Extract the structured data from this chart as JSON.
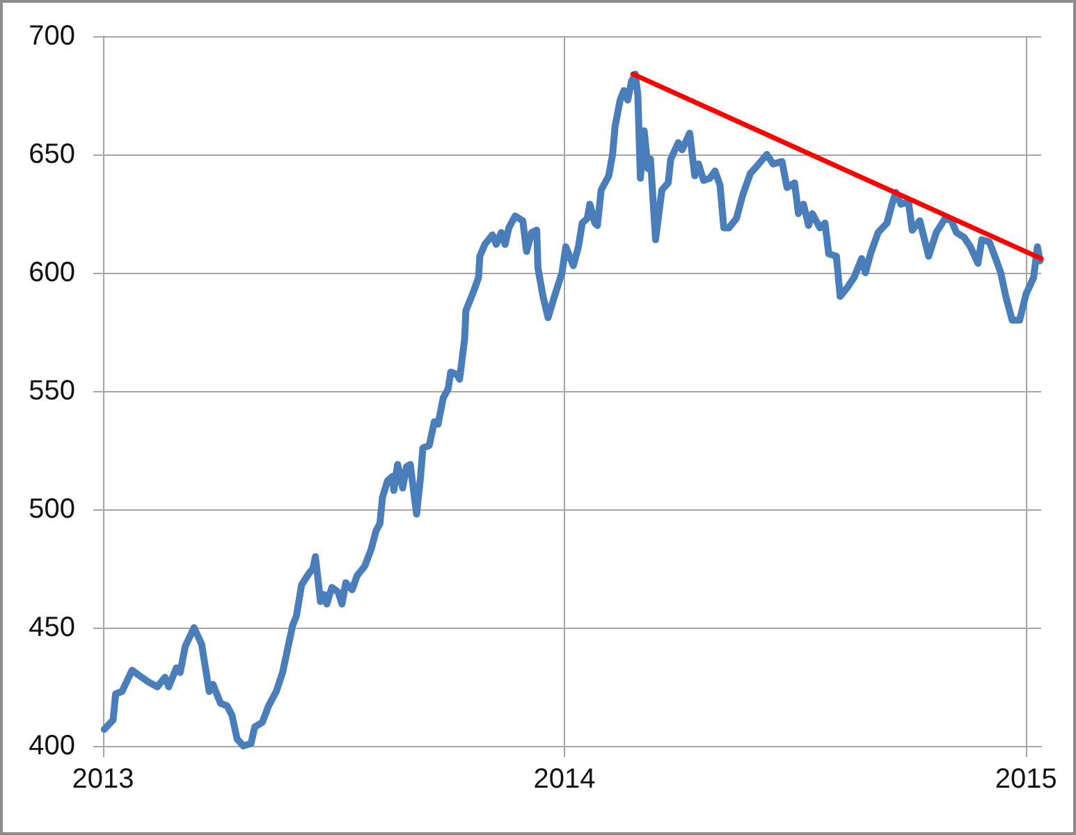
{
  "chart_data": {
    "type": "line",
    "xlim": [
      "2013-01-01",
      "2015-01-13"
    ],
    "xticks": [
      "2013",
      "2014",
      "2015"
    ],
    "ylim": [
      400,
      700
    ],
    "yticks": [
      400,
      450,
      500,
      550,
      600,
      650,
      700
    ],
    "grid": true,
    "marker": "none",
    "series": [
      {
        "color": "#4a7ebb",
        "x": [
          "2013-01-02",
          "2013-01-09",
          "2013-01-11",
          "2013-01-16",
          "2013-01-24",
          "2013-01-29",
          "2013-02-06",
          "2013-02-13",
          "2013-02-19",
          "2013-02-22",
          "2013-02-28",
          "2013-03-03",
          "2013-03-07",
          "2013-03-14",
          "2013-03-20",
          "2013-03-26",
          "2013-03-29",
          "2013-04-04",
          "2013-04-09",
          "2013-04-13",
          "2013-04-17",
          "2013-04-22",
          "2013-04-28",
          "2013-05-01",
          "2013-05-07",
          "2013-05-12",
          "2013-05-18",
          "2013-05-23",
          "2013-05-27",
          "2013-05-31",
          "2013-06-03",
          "2013-06-07",
          "2013-06-13",
          "2013-06-16",
          "2013-06-18",
          "2013-06-22",
          "2013-06-25",
          "2013-06-27",
          "2013-07-01",
          "2013-07-06",
          "2013-07-09",
          "2013-07-12",
          "2013-07-17",
          "2013-07-21",
          "2013-07-27",
          "2013-08-01",
          "2013-08-05",
          "2013-08-08",
          "2013-08-10",
          "2013-08-14",
          "2013-08-18",
          "2013-08-19",
          "2013-08-22",
          "2013-08-26",
          "2013-08-29",
          "2013-09-01",
          "2013-09-06",
          "2013-09-09",
          "2013-09-11",
          "2013-09-16",
          "2013-09-20",
          "2013-09-23",
          "2013-09-27",
          "2013-10-01",
          "2013-10-03",
          "2013-10-08",
          "2013-10-10",
          "2013-10-14",
          "2013-10-15",
          "2013-10-21",
          "2013-10-25",
          "2013-10-26",
          "2013-10-30",
          "2013-11-05",
          "2013-11-08",
          "2013-11-12",
          "2013-11-15",
          "2013-11-18",
          "2013-11-23",
          "2013-11-29",
          "2013-12-02",
          "2013-12-06",
          "2013-12-10",
          "2013-12-11",
          "2013-12-15",
          "2013-12-19",
          "2013-12-24",
          "2013-12-30",
          "2014-01-02",
          "2014-01-08",
          "2014-01-12",
          "2014-01-15",
          "2014-01-19",
          "2014-01-21",
          "2014-01-25",
          "2014-01-27",
          "2014-01-30",
          "2014-02-05",
          "2014-02-08",
          "2014-02-10",
          "2014-02-14",
          "2014-02-17",
          "2014-02-20",
          "2014-02-23",
          "2014-02-26",
          "2014-02-28",
          "2014-03-02",
          "2014-03-05",
          "2014-03-08",
          "2014-03-10",
          "2014-03-14",
          "2014-03-19",
          "2014-03-24",
          "2014-03-26",
          "2014-04-01",
          "2014-04-04",
          "2014-04-10",
          "2014-04-14",
          "2014-04-17",
          "2014-04-21",
          "2014-04-26",
          "2014-04-30",
          "2014-05-04",
          "2014-05-07",
          "2014-05-11",
          "2014-05-17",
          "2014-05-22",
          "2014-05-28",
          "2014-06-02",
          "2014-06-10",
          "2014-06-15",
          "2014-06-22",
          "2014-06-26",
          "2014-07-02",
          "2014-07-05",
          "2014-07-09",
          "2014-07-13",
          "2014-07-16",
          "2014-07-22",
          "2014-07-26",
          "2014-07-29",
          "2014-08-04",
          "2014-08-07",
          "2014-08-13",
          "2014-08-18",
          "2014-08-24",
          "2014-08-27",
          "2014-08-31",
          "2014-09-06",
          "2014-09-13",
          "2014-09-17",
          "2014-09-20",
          "2014-09-24",
          "2014-09-30",
          "2014-10-03",
          "2014-10-09",
          "2014-10-16",
          "2014-10-22",
          "2014-10-29",
          "2014-11-03",
          "2014-11-07",
          "2014-11-13",
          "2014-11-18",
          "2014-11-24",
          "2014-11-27",
          "2014-12-03",
          "2014-12-08",
          "2014-12-12",
          "2014-12-16",
          "2014-12-21",
          "2014-12-27",
          "2015-01-01",
          "2015-01-07",
          "2015-01-10",
          "2015-01-12"
        ],
        "values": [
          407,
          411,
          422,
          423,
          432,
          430,
          427,
          425,
          429,
          425,
          433,
          431,
          442,
          450,
          443,
          423,
          426,
          418,
          417,
          413,
          403,
          400,
          401,
          408,
          410,
          417,
          423,
          431,
          441,
          451,
          455,
          468,
          473,
          475,
          480,
          461,
          464,
          460,
          467,
          465,
          460,
          469,
          466,
          472,
          476,
          483,
          491,
          494,
          505,
          512,
          514,
          508,
          519,
          509,
          518,
          519,
          498,
          513,
          526,
          527,
          537,
          536,
          547,
          551,
          558,
          557,
          555,
          572,
          584,
          592,
          598,
          607,
          612,
          616,
          612,
          617,
          612,
          619,
          624,
          622,
          609,
          617,
          618,
          602,
          590,
          581,
          590,
          600,
          611,
          603,
          611,
          621,
          623,
          629,
          621,
          620,
          635,
          641,
          650,
          662,
          673,
          677,
          673,
          681,
          684,
          675,
          640,
          660,
          644,
          648,
          614,
          635,
          638,
          648,
          655,
          652,
          659,
          641,
          646,
          639,
          640,
          643,
          637,
          619,
          619,
          623,
          633,
          642,
          645,
          650,
          646,
          647,
          636,
          638,
          625,
          629,
          620,
          625,
          619,
          621,
          608,
          607,
          590,
          594,
          598,
          606,
          600,
          608,
          617,
          621,
          629,
          634,
          629,
          630,
          618,
          622,
          607,
          617,
          623,
          622,
          617,
          615,
          611,
          604,
          614,
          613,
          606,
          600,
          590,
          580,
          580,
          591,
          598,
          611,
          605
        ]
      },
      {
        "type": "line",
        "color": "#ff0000",
        "x": [
          "2014-02-24",
          "2015-01-13"
        ],
        "values": [
          684,
          606
        ]
      }
    ]
  }
}
